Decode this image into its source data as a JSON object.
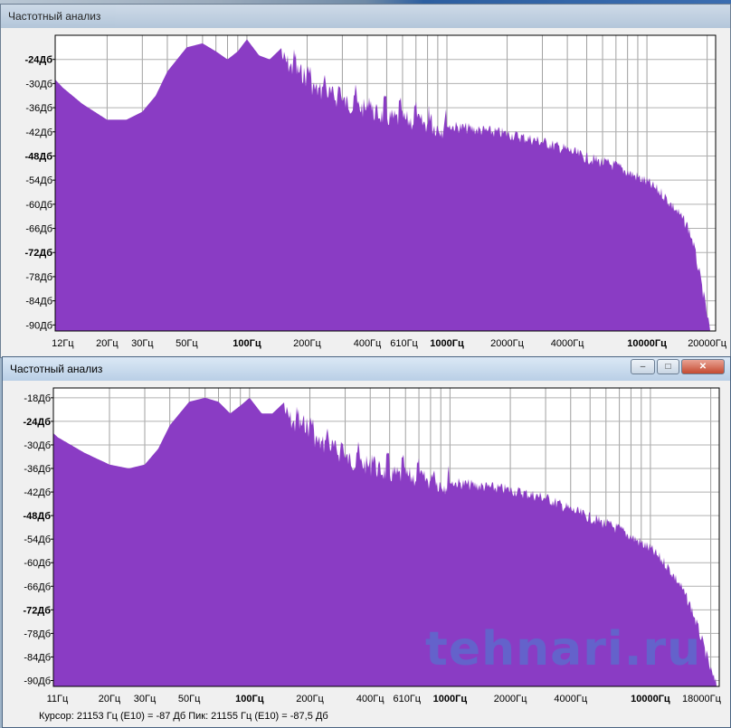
{
  "windows": [
    {
      "title": "Частотный анализ",
      "y_labels": [
        "-24Дб",
        "-30Дб",
        "-36Дб",
        "-42Дб",
        "-48Дб",
        "-54Дб",
        "-60Дб",
        "-66Дб",
        "-72Дб",
        "-78Дб",
        "-84Дб",
        "-90Дб"
      ],
      "x_labels": [
        "12Гц",
        "20Гц",
        "30Гц",
        "50Гц",
        "100Гц",
        "200Гц",
        "400Гц",
        "610Гц",
        "1000Гц",
        "2000Гц",
        "4000Гц",
        "10000Гц",
        "20000Гц"
      ]
    },
    {
      "title": "Частотный анализ",
      "y_labels": [
        "-18Дб",
        "-24Дб",
        "-30Дб",
        "-36Дб",
        "-42Дб",
        "-48Дб",
        "-54Дб",
        "-60Дб",
        "-66Дб",
        "-72Дб",
        "-78Дб",
        "-84Дб",
        "-90Дб"
      ],
      "x_labels": [
        "11Гц",
        "20Гц",
        "30Гц",
        "50Гц",
        "100Гц",
        "200Гц",
        "400Гц",
        "610Гц",
        "1000Гц",
        "2000Гц",
        "4000Гц",
        "10000Гц",
        "18000Гц"
      ],
      "status": "Курсор: 21153 Гц (E10) = -87 Дб    Пик: 21155 Гц (E10) = -87,5 Дб"
    }
  ],
  "watermark": "tehnari.ru",
  "chart_data": [
    {
      "type": "area",
      "title": "Частотный анализ",
      "xscale": "log",
      "xlim": [
        11,
        22050
      ],
      "ylim": [
        -91.5,
        -18
      ],
      "x_ticks": [
        12,
        20,
        30,
        50,
        100,
        200,
        400,
        610,
        1000,
        2000,
        4000,
        10000,
        20000
      ],
      "y_ticks": [
        -24,
        -30,
        -36,
        -42,
        -48,
        -54,
        -60,
        -66,
        -72,
        -78,
        -84,
        -90
      ],
      "color": "#8a3cc4",
      "x": [
        11,
        12,
        15,
        20,
        25,
        30,
        35,
        40,
        50,
        60,
        70,
        80,
        90,
        100,
        115,
        130,
        150,
        170,
        190,
        220,
        260,
        300,
        400,
        500,
        700,
        1000,
        2000,
        3000,
        4000,
        5000,
        7000,
        10000,
        12000,
        14000,
        16000,
        17000,
        18000,
        19000,
        20000,
        21000
      ],
      "y": [
        -29,
        -31,
        -35,
        -39,
        -39,
        -37,
        -33,
        -27,
        -21,
        -20,
        -22,
        -24,
        -22,
        -19,
        -23,
        -24,
        -21,
        -24,
        -25,
        -29,
        -30,
        -32,
        -34,
        -36,
        -37,
        -39,
        -41,
        -43,
        -45,
        -47,
        -49,
        -53,
        -56,
        -60,
        -64,
        -68,
        -74,
        -80,
        -86,
        -92
      ]
    },
    {
      "type": "area",
      "title": "Частотный анализ",
      "xscale": "log",
      "xlim": [
        10.5,
        22050
      ],
      "ylim": [
        -91.5,
        -15.5
      ],
      "x_ticks": [
        11,
        20,
        30,
        50,
        100,
        200,
        400,
        610,
        1000,
        2000,
        4000,
        10000,
        18000
      ],
      "y_ticks": [
        -18,
        -24,
        -30,
        -36,
        -42,
        -48,
        -54,
        -60,
        -66,
        -72,
        -78,
        -84,
        -90
      ],
      "color": "#8a3cc4",
      "x": [
        10.5,
        11,
        15,
        20,
        25,
        30,
        35,
        40,
        50,
        60,
        70,
        80,
        90,
        100,
        115,
        130,
        150,
        170,
        190,
        220,
        260,
        300,
        400,
        500,
        700,
        1000,
        2000,
        3000,
        4000,
        5000,
        7000,
        10000,
        12000,
        14000,
        16000,
        18000,
        19000,
        20000,
        21000,
        22000
      ],
      "y": [
        -27,
        -28,
        -32,
        -35,
        -36,
        -35,
        -31,
        -25,
        -19,
        -18,
        -19,
        -22,
        -20,
        -18,
        -22,
        -22,
        -19,
        -23,
        -22,
        -27,
        -28,
        -31,
        -33,
        -35,
        -36,
        -38,
        -40,
        -42,
        -45,
        -47,
        -50,
        -55,
        -59,
        -64,
        -70,
        -78,
        -82,
        -86,
        -89,
        -91
      ]
    }
  ]
}
